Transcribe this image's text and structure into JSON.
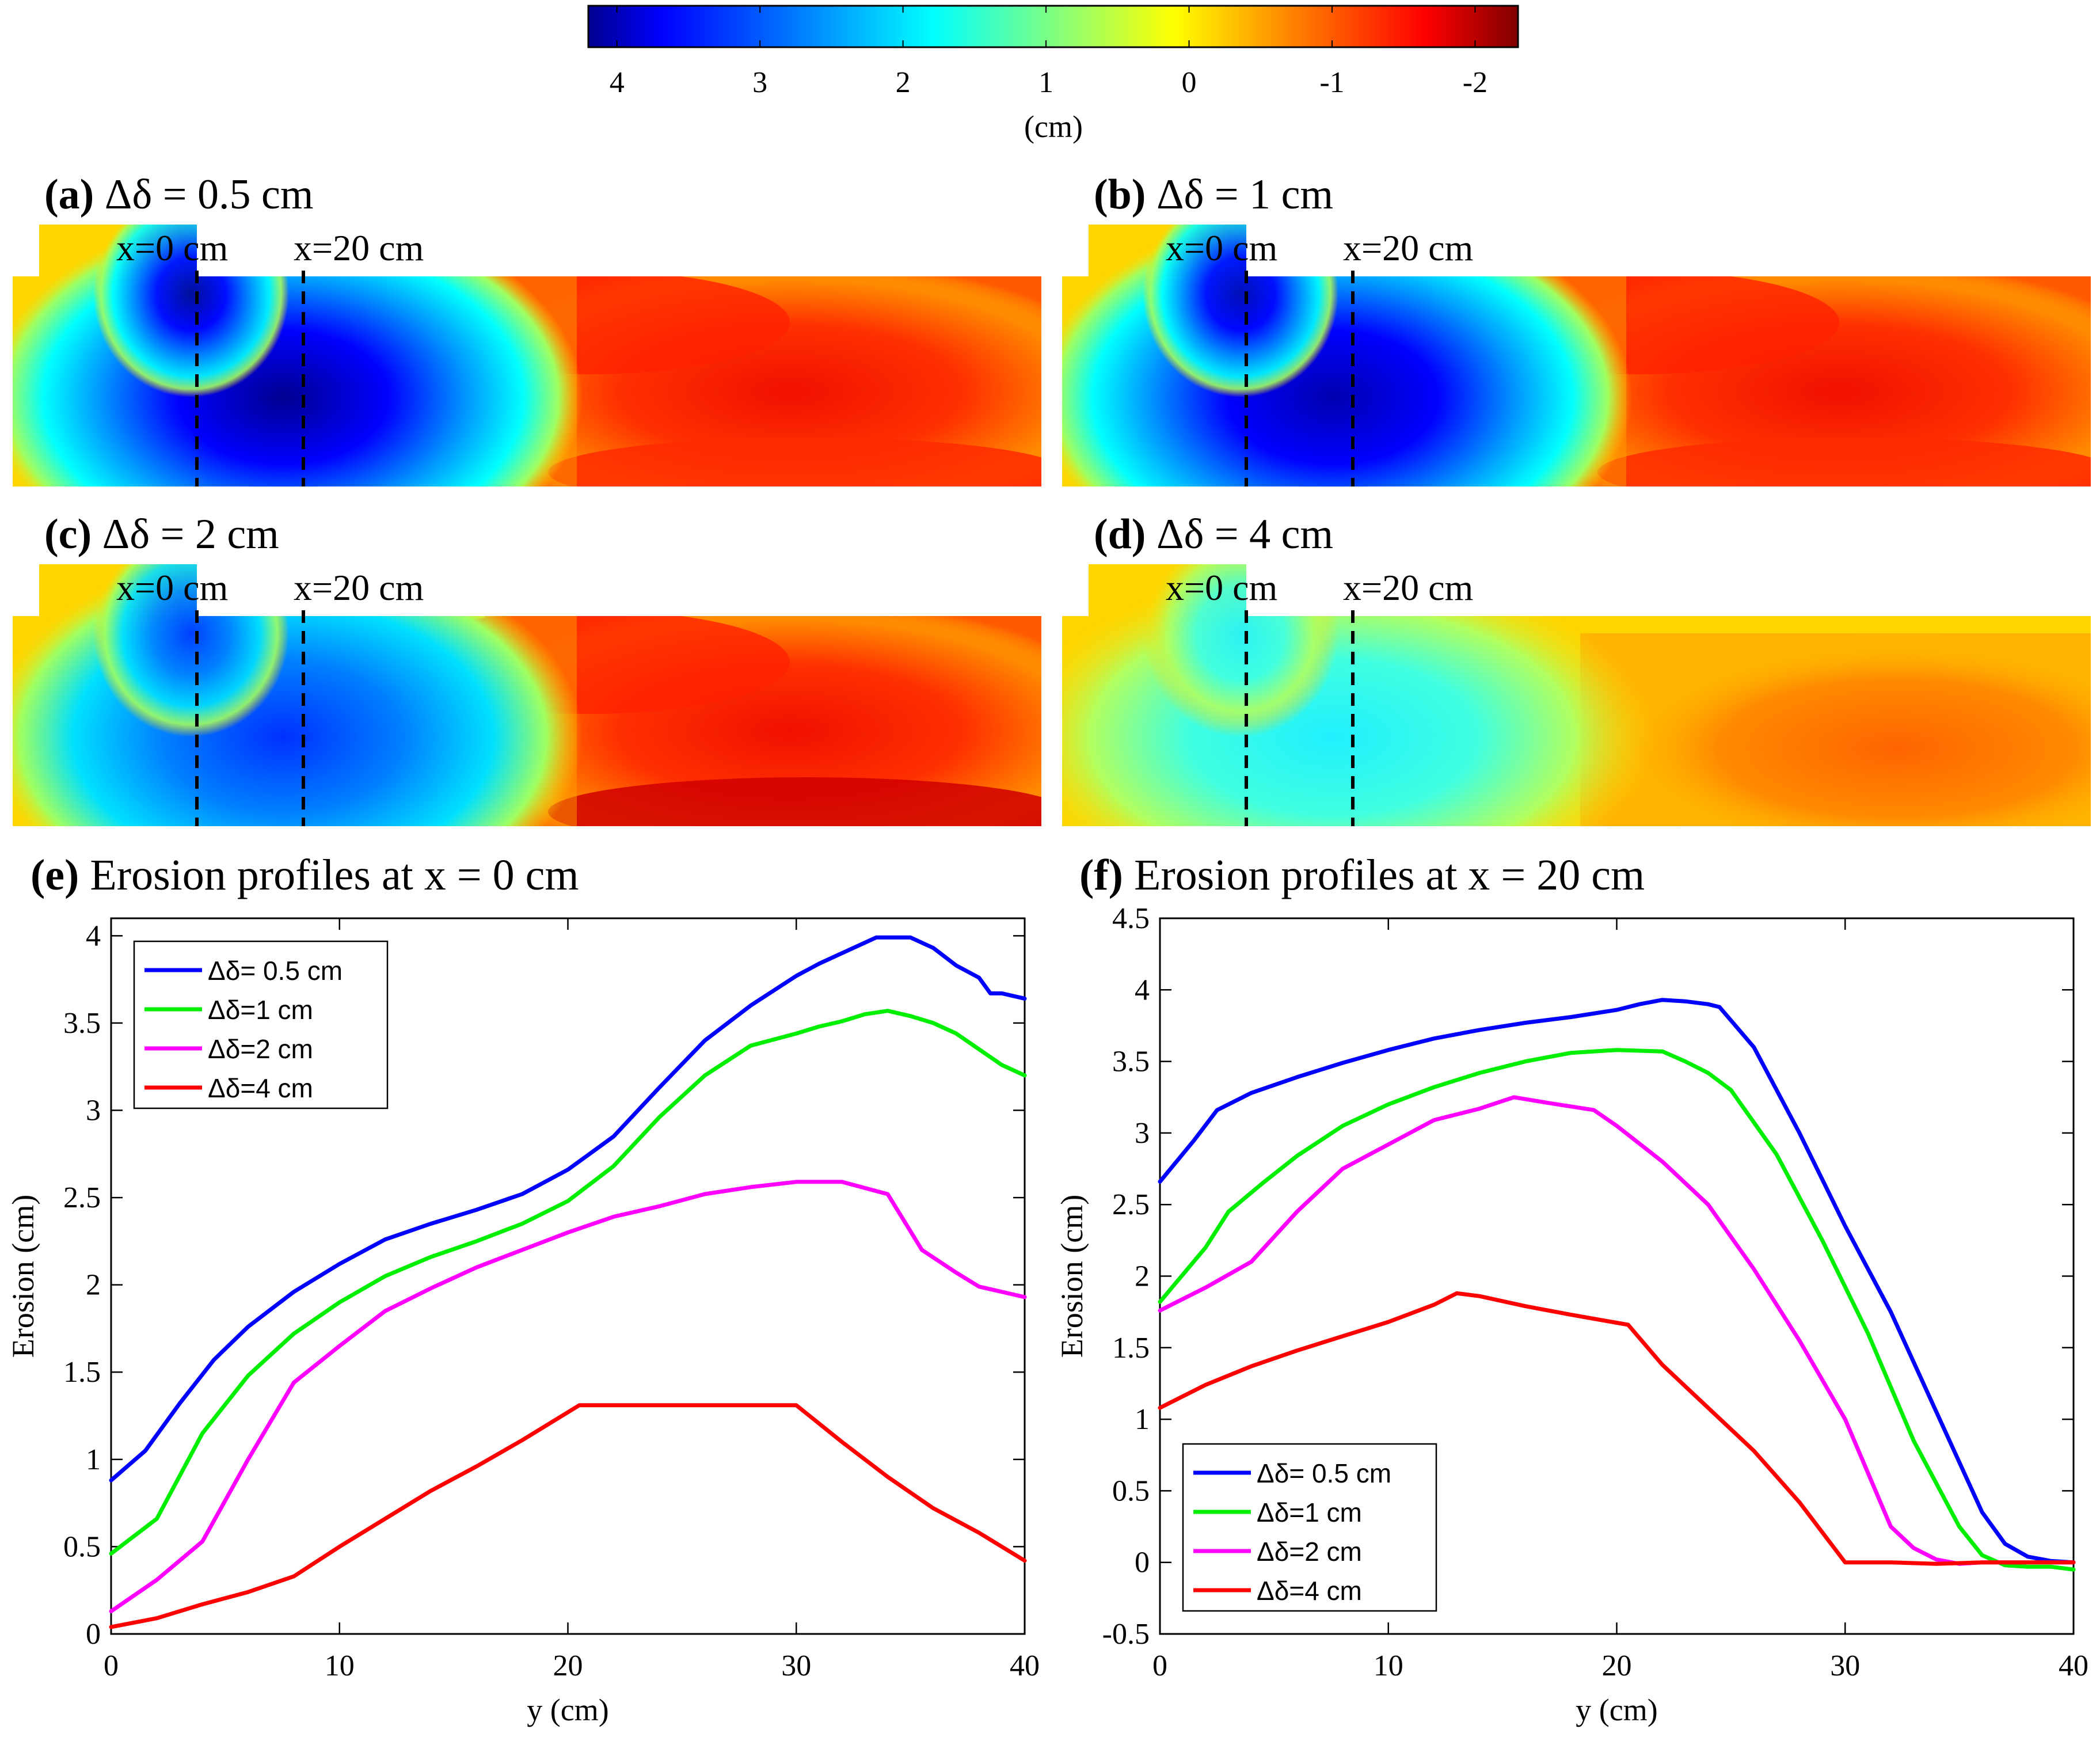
{
  "colorbar": {
    "unit": "(cm)",
    "ticks": [
      "4",
      "3",
      "2",
      "1",
      "0",
      "-1",
      "-2"
    ],
    "tick_values": [
      4,
      3,
      2,
      1,
      0,
      -1,
      -2
    ],
    "range": [
      4.2,
      -2.3
    ],
    "colors": [
      "#00008f",
      "#0000ff",
      "#0080ff",
      "#00ffff",
      "#80ff80",
      "#ffff00",
      "#ff8000",
      "#ff0000",
      "#800000"
    ]
  },
  "maps": [
    {
      "label_letter": "(a)",
      "label_rest": "Δδ = 0.5 cm",
      "x0_label": "x=0 cm",
      "x20_label": "x=20 cm"
    },
    {
      "label_letter": "(b)",
      "label_rest": "Δδ = 1 cm",
      "x0_label": "x=0 cm",
      "x20_label": "x=20 cm"
    },
    {
      "label_letter": "(c)",
      "label_rest": "Δδ = 2 cm",
      "x0_label": "x=0 cm",
      "x20_label": "x=20 cm"
    },
    {
      "label_letter": "(d)",
      "label_rest": "Δδ = 4 cm",
      "x0_label": "x=0 cm",
      "x20_label": "x=20 cm"
    }
  ],
  "panels": [
    {
      "label_letter": "(e)",
      "title_text": "Erosion profiles at x = 0 cm"
    },
    {
      "label_letter": "(f)",
      "title_text": "Erosion profiles at x = 20 cm"
    }
  ],
  "chart_data": [
    {
      "type": "line",
      "title": "(e) Erosion profiles at x = 0 cm",
      "xlabel": "y (cm)",
      "ylabel": "Erosion (cm)",
      "xlim": [
        0,
        40
      ],
      "ylim": [
        0,
        4.1
      ],
      "xticks": [
        0,
        10,
        20,
        30,
        40
      ],
      "yticks": [
        0,
        0.5,
        1,
        1.5,
        2,
        2.5,
        3,
        3.5,
        4
      ],
      "ytick_labels": [
        "0",
        "0.5",
        "1",
        "1.5",
        "2",
        "2.5",
        "3",
        "3.5",
        "4"
      ],
      "legend_position": "top-left",
      "series": [
        {
          "name": "Δδ= 0.5 cm",
          "color": "#0000ff",
          "x": [
            0,
            1.5,
            3,
            4.5,
            6,
            8,
            10,
            12,
            14,
            16,
            18,
            20,
            22,
            24,
            26,
            28,
            30,
            31,
            32,
            33.5,
            35,
            36,
            37,
            38,
            38.5,
            39,
            40
          ],
          "y": [
            0.88,
            1.05,
            1.32,
            1.57,
            1.76,
            1.96,
            2.12,
            2.26,
            2.35,
            2.43,
            2.52,
            2.66,
            2.85,
            3.13,
            3.4,
            3.6,
            3.77,
            3.84,
            3.9,
            3.99,
            3.99,
            3.93,
            3.83,
            3.76,
            3.67,
            3.67,
            3.64
          ]
        },
        {
          "name": "Δδ=1 cm",
          "color": "#00ee00",
          "x": [
            0,
            2,
            4,
            6,
            8,
            10,
            12,
            14,
            16,
            18,
            20,
            22,
            24,
            26,
            28,
            30,
            31,
            32,
            33,
            34,
            35,
            36,
            37,
            38,
            39,
            40
          ],
          "y": [
            0.46,
            0.66,
            1.15,
            1.48,
            1.72,
            1.9,
            2.05,
            2.16,
            2.25,
            2.35,
            2.48,
            2.68,
            2.96,
            3.2,
            3.37,
            3.44,
            3.48,
            3.51,
            3.55,
            3.57,
            3.54,
            3.5,
            3.44,
            3.35,
            3.26,
            3.2
          ]
        },
        {
          "name": "Δδ=2 cm",
          "color": "#ff00ff",
          "x": [
            0,
            2,
            4,
            6,
            8,
            10,
            12,
            14,
            16,
            18,
            20,
            22,
            24,
            26,
            28,
            30,
            32,
            34,
            35.5,
            37,
            38,
            40
          ],
          "y": [
            0.13,
            0.31,
            0.53,
            1.0,
            1.44,
            1.65,
            1.85,
            1.98,
            2.1,
            2.2,
            2.3,
            2.39,
            2.45,
            2.52,
            2.56,
            2.59,
            2.59,
            2.52,
            2.2,
            2.07,
            1.99,
            1.93
          ]
        },
        {
          "name": "Δδ=4 cm",
          "color": "#ff0000",
          "x": [
            0,
            2,
            4,
            6,
            8,
            10,
            12,
            14,
            16,
            18,
            20.5,
            24,
            27,
            30,
            32,
            34,
            36,
            38,
            40
          ],
          "y": [
            0.04,
            0.09,
            0.17,
            0.24,
            0.33,
            0.5,
            0.66,
            0.82,
            0.96,
            1.11,
            1.31,
            1.31,
            1.31,
            1.31,
            1.1,
            0.9,
            0.72,
            0.58,
            0.42
          ]
        }
      ]
    },
    {
      "type": "line",
      "title": "(f) Erosion profiles at x = 20 cm",
      "xlabel": "y (cm)",
      "ylabel": "Erosion (cm)",
      "xlim": [
        0,
        40
      ],
      "ylim": [
        -0.5,
        4.5
      ],
      "xticks": [
        0,
        10,
        20,
        30,
        40
      ],
      "yticks": [
        -0.5,
        0,
        0.5,
        1,
        1.5,
        2,
        2.5,
        3,
        3.5,
        4,
        4.5
      ],
      "ytick_labels": [
        "-0.5",
        "0",
        "0.5",
        "1",
        "1.5",
        "2",
        "2.5",
        "3",
        "3.5",
        "4",
        "4.5"
      ],
      "legend_position": "bottom-left",
      "series": [
        {
          "name": "Δδ= 0.5 cm",
          "color": "#0000ff",
          "x": [
            0,
            1.5,
            2.5,
            4,
            6,
            8,
            10,
            12,
            14,
            16,
            18,
            20,
            21,
            22,
            23,
            24,
            24.5,
            26,
            28,
            30,
            32,
            34,
            35,
            36,
            37,
            38,
            39,
            40
          ],
          "y": [
            2.66,
            2.95,
            3.16,
            3.28,
            3.39,
            3.49,
            3.58,
            3.66,
            3.72,
            3.77,
            3.81,
            3.86,
            3.9,
            3.93,
            3.92,
            3.9,
            3.88,
            3.6,
            3.0,
            2.35,
            1.75,
            1.05,
            0.7,
            0.35,
            0.13,
            0.04,
            0.01,
            0.0
          ]
        },
        {
          "name": "Δδ=1 cm",
          "color": "#00ee00",
          "x": [
            0,
            2,
            3,
            4.5,
            6,
            8,
            10,
            12,
            14,
            16,
            18,
            20,
            22,
            23,
            24,
            25,
            27,
            29,
            31,
            33,
            35,
            36,
            37,
            38,
            39,
            40
          ],
          "y": [
            1.82,
            2.2,
            2.45,
            2.65,
            2.84,
            3.05,
            3.2,
            3.32,
            3.42,
            3.5,
            3.56,
            3.58,
            3.57,
            3.5,
            3.42,
            3.3,
            2.85,
            2.25,
            1.6,
            0.85,
            0.25,
            0.05,
            -0.02,
            -0.03,
            -0.03,
            -0.05
          ]
        },
        {
          "name": "Δδ=2 cm",
          "color": "#ff00ff",
          "x": [
            0,
            2,
            4,
            6,
            8,
            10,
            12,
            14,
            15.5,
            17,
            19,
            20,
            22,
            24,
            26,
            28,
            30,
            32,
            33,
            34,
            35,
            36,
            37,
            38,
            40
          ],
          "y": [
            1.76,
            1.92,
            2.1,
            2.45,
            2.75,
            2.92,
            3.09,
            3.17,
            3.25,
            3.21,
            3.16,
            3.05,
            2.8,
            2.5,
            2.05,
            1.55,
            1.0,
            0.25,
            0.1,
            0.02,
            -0.01,
            0.0,
            0.0,
            0.0,
            0.0
          ]
        },
        {
          "name": "Δδ=4 cm",
          "color": "#ff0000",
          "x": [
            0,
            2,
            4,
            6,
            8,
            10,
            12,
            13,
            14,
            16,
            18,
            20.5,
            22,
            24,
            26,
            28,
            30,
            32,
            34,
            36,
            38,
            40
          ],
          "y": [
            1.08,
            1.24,
            1.37,
            1.48,
            1.58,
            1.68,
            1.8,
            1.88,
            1.86,
            1.79,
            1.73,
            1.66,
            1.38,
            1.08,
            0.78,
            0.42,
            0.0,
            0.0,
            -0.01,
            0.0,
            0.0,
            0.0
          ]
        }
      ]
    }
  ]
}
